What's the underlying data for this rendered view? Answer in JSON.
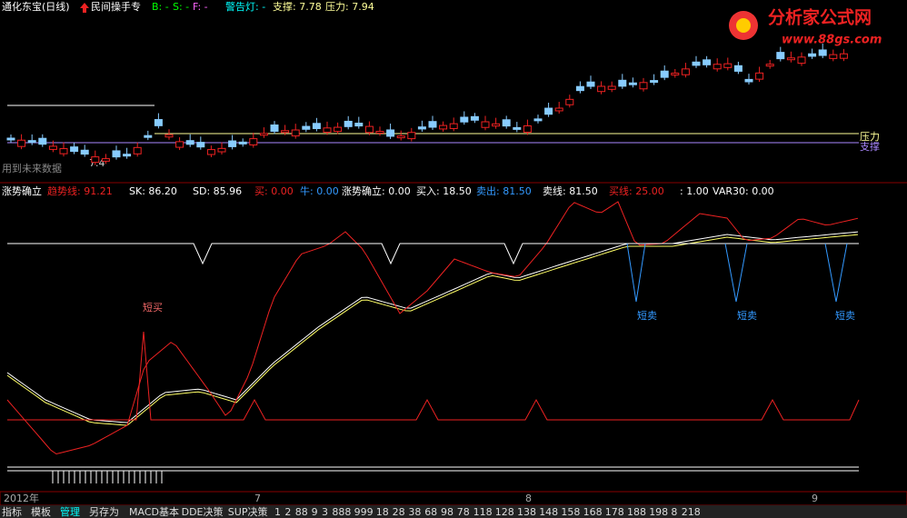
{
  "header": {
    "stock": "通化东宝(日线)",
    "formula": "民间操手专",
    "b": "B: -",
    "s": "S: -",
    "f": "F: -",
    "warning": "警告灯: -",
    "support": "支撑: 7.78",
    "resistance": "压力: 7.94"
  },
  "logo": {
    "name": "分析家公式网",
    "url": "www.88gs.com"
  },
  "main_chart": {
    "resistance_label": "压力",
    "support_label": "支撑",
    "future_note": "用到未来数据",
    "price_mark": "7.4"
  },
  "indicator": {
    "name": "涨势确立",
    "values": [
      "趋势线: 91.21",
      "SK: 86.20",
      "SD: 85.96",
      "买: 0.00",
      "牛: 0.00",
      "涨势确立: 0.00",
      "买入: 18.50",
      "卖出: 81.50",
      "卖线: 81.50",
      "买线: 25.00",
      ": 1.00",
      "VAR30: 0.00"
    ],
    "buy_label": "短买",
    "sell_labels": [
      "短卖",
      "短卖",
      "短卖"
    ]
  },
  "time_axis": [
    "2012年",
    "7",
    "8",
    "9"
  ],
  "tabs": [
    "指标",
    "模板",
    "管理",
    "另存为",
    "MACD基本",
    "DDE决策",
    "SUP决策",
    "1",
    "2",
    "88",
    "9",
    "3",
    "888",
    "999",
    "18",
    "28",
    "38",
    "68",
    "98",
    "78",
    "118",
    "128",
    "138",
    "148",
    "158",
    "168",
    "178",
    "188",
    "198",
    "8",
    "218"
  ]
}
